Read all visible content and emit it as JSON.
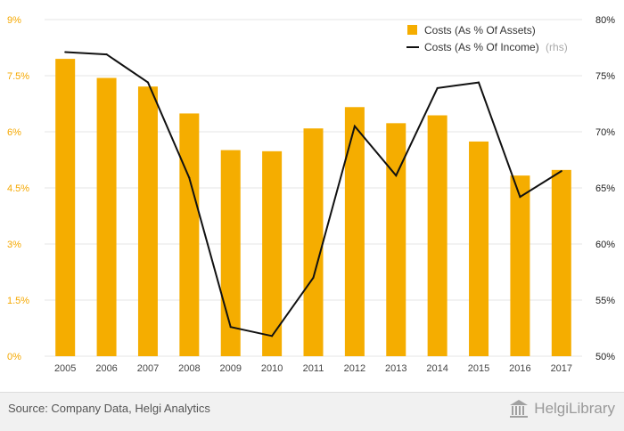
{
  "chart_data": {
    "type": "bar+line",
    "categories": [
      "2005",
      "2006",
      "2007",
      "2008",
      "2009",
      "2010",
      "2011",
      "2012",
      "2013",
      "2014",
      "2015",
      "2016",
      "2017"
    ],
    "series": [
      {
        "name": "Costs (As % Of Assets)",
        "type": "bar",
        "axis": "left",
        "values": [
          7.95,
          7.44,
          7.21,
          6.49,
          5.51,
          5.48,
          6.09,
          6.66,
          6.23,
          6.44,
          5.74,
          4.83,
          4.98
        ]
      },
      {
        "name": "Costs (As % Of Income)",
        "name_suffix": "(rhs)",
        "type": "line",
        "axis": "right",
        "values": [
          77.1,
          76.9,
          74.4,
          65.9,
          52.6,
          51.8,
          57.0,
          70.5,
          66.1,
          73.9,
          74.4,
          64.2,
          66.5
        ]
      }
    ],
    "y_left": {
      "min": 0,
      "max": 9,
      "ticks": [
        "0%",
        "1.5%",
        "3%",
        "4.5%",
        "6%",
        "7.5%",
        "9%"
      ]
    },
    "y_right": {
      "min": 50,
      "max": 80,
      "ticks": [
        "50%",
        "55%",
        "60%",
        "65%",
        "70%",
        "75%",
        "80%"
      ]
    },
    "grid": true,
    "legend_position": "top-right"
  },
  "colors": {
    "bar": "#f5ad00",
    "line": "#111111",
    "grid": "#e6e6e6",
    "left_ticks": "#f5a800"
  },
  "footer": {
    "source": "Source: Company Data, Helgi Analytics",
    "brand": "HelgiLibrary",
    "brand_icon": "library-building-icon"
  }
}
